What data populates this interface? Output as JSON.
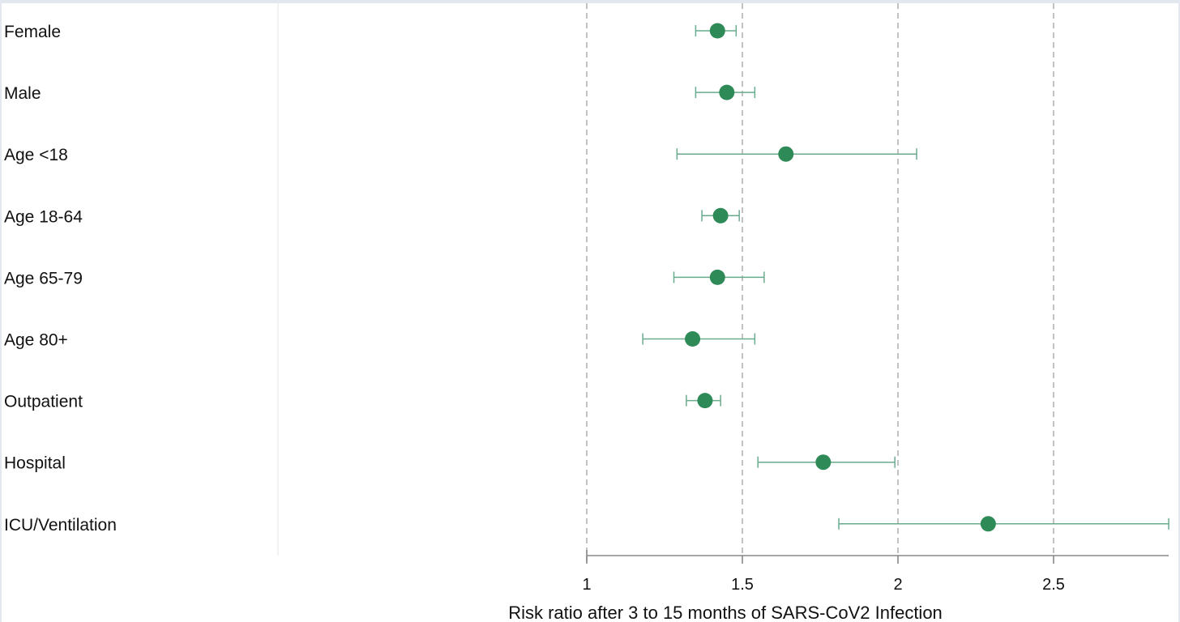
{
  "chart_data": {
    "type": "scatter",
    "subtype": "forest-plot",
    "title": "",
    "xlabel": "Risk ratio after 3 to 15 months of SARS-CoV2 Infection",
    "ylabel": "",
    "xlim": [
      1,
      2.87
    ],
    "x_ticks": [
      1,
      1.5,
      2,
      2.5
    ],
    "x_tick_labels": [
      "1",
      "1.5",
      "2",
      "2.5"
    ],
    "grid": "vertical dashed at 1, 1.5, 2, 2.5",
    "marker_color": "#2e8b57",
    "errorbar_color": "#6aab8e",
    "categories": [
      "Female",
      "Male",
      "Age <18",
      "Age 18-64",
      "Age 65-79",
      "Age 80+",
      "Outpatient",
      "Hospital",
      "ICU/Ventilation"
    ],
    "series": [
      {
        "estimate": [
          1.42,
          1.45,
          1.64,
          1.43,
          1.42,
          1.34,
          1.38,
          1.76,
          2.29
        ],
        "ci_low": [
          1.35,
          1.35,
          1.29,
          1.37,
          1.28,
          1.18,
          1.32,
          1.55,
          1.81
        ],
        "ci_high": [
          1.48,
          1.54,
          2.06,
          1.49,
          1.57,
          1.54,
          1.43,
          1.99,
          2.87
        ]
      }
    ]
  }
}
